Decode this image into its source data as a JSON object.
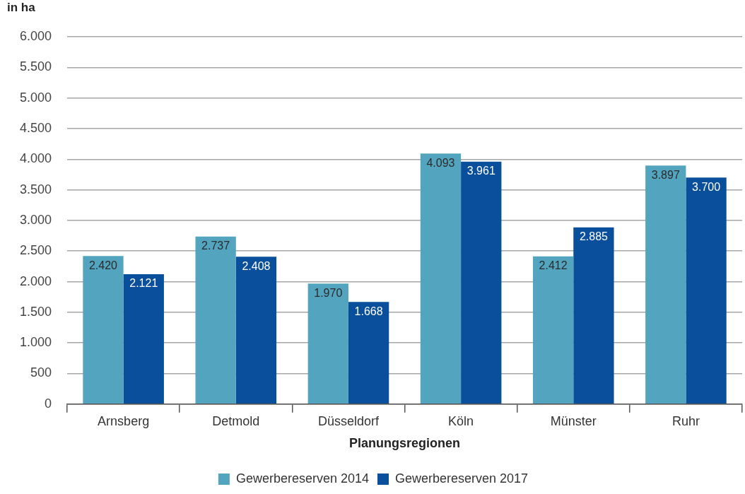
{
  "chart_data": {
    "type": "bar",
    "ylabel": "in ha",
    "xlabel": "Planungsregionen",
    "categories": [
      "Arnsberg",
      "Detmold",
      "Düsseldorf",
      "Köln",
      "Münster",
      "Ruhr"
    ],
    "series": [
      {
        "name": "Gewerbereserven 2014",
        "color": "#52a4bf",
        "values": [
          2420,
          2737,
          1970,
          4093,
          2412,
          3897
        ],
        "value_labels": [
          "2.420",
          "2.737",
          "1.970",
          "4.093",
          "2.412",
          "3.897"
        ]
      },
      {
        "name": "Gewerbereserven 2017",
        "color": "#0a4f9c",
        "values": [
          2121,
          2408,
          1668,
          3961,
          2885,
          3700
        ],
        "value_labels": [
          "2.121",
          "2.408",
          "1.668",
          "3.961",
          "2.885",
          "3.700"
        ]
      }
    ],
    "ylim": [
      0,
      6000
    ],
    "yticks": [
      0,
      500,
      {
        "value": 1000,
        "label": "1.000"
      },
      {
        "value": 1500,
        "label": "1.500"
      },
      {
        "value": 2000,
        "label": "2.000"
      },
      {
        "value": 2500,
        "label": "2.500"
      },
      {
        "value": 3000,
        "label": "3.000"
      },
      {
        "value": 3500,
        "label": "3.500"
      },
      {
        "value": 4000,
        "label": "4.000"
      },
      {
        "value": 4500,
        "label": "4.500"
      },
      {
        "value": 5000,
        "label": "5.000"
      },
      {
        "value": 5500,
        "label": "5.500"
      },
      {
        "value": 6000,
        "label": "6.000"
      }
    ],
    "grid": "y",
    "legend": "bottom"
  }
}
